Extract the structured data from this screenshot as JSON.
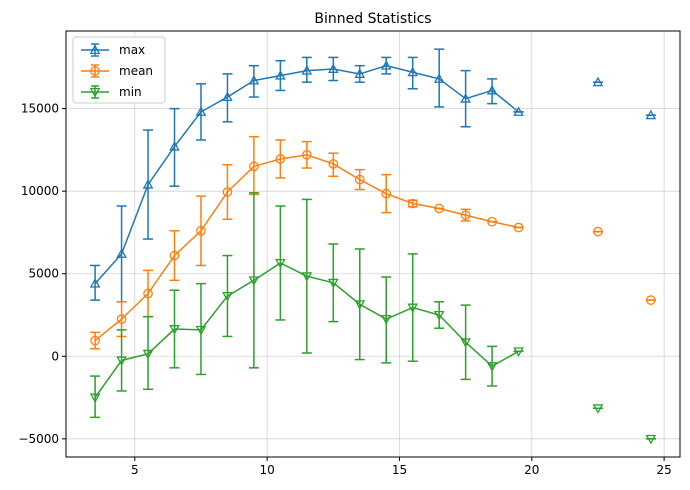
{
  "chart_data": {
    "type": "line",
    "title": "Binned Statistics",
    "xlabel": "",
    "ylabel": "",
    "xlim": [
      2.4,
      25.6
    ],
    "ylim": [
      -6100,
      19700
    ],
    "xticks": [
      5,
      10,
      15,
      20,
      25
    ],
    "yticks": [
      -5000,
      0,
      5000,
      10000,
      15000
    ],
    "xtick_labels": [
      "5",
      "10",
      "15",
      "20",
      "25"
    ],
    "ytick_labels": [
      "−5000",
      "0",
      "5000",
      "10000",
      "15000"
    ],
    "grid": true,
    "legend_position": "top-left",
    "series": [
      {
        "name": "max",
        "color": "#1f77b4",
        "marker": "triangle-up",
        "x": [
          3.5,
          4.5,
          5.5,
          6.5,
          7.5,
          8.5,
          9.5,
          10.5,
          11.5,
          12.5,
          13.5,
          14.5,
          15.5,
          16.5,
          17.5,
          18.5,
          19.5,
          22.5,
          24.5
        ],
        "y": [
          4400,
          6200,
          10400,
          12700,
          14800,
          15700,
          16700,
          17000,
          17300,
          17400,
          17100,
          17600,
          17200,
          16800,
          15600,
          16100,
          14800,
          16600,
          14600
        ],
        "err_low": [
          3400,
          3300,
          7100,
          10300,
          13100,
          14200,
          15700,
          16100,
          16600,
          16700,
          16600,
          17100,
          16200,
          15100,
          13900,
          15300,
          14800,
          16600,
          14600
        ],
        "err_high": [
          5500,
          9100,
          13700,
          15000,
          16500,
          17100,
          17600,
          17900,
          18100,
          18100,
          17600,
          18100,
          18100,
          18600,
          17300,
          16800,
          14800,
          16600,
          14600
        ],
        "connected_count": 17
      },
      {
        "name": "mean",
        "color": "#ff7f0e",
        "marker": "circle",
        "x": [
          3.5,
          4.5,
          5.5,
          6.5,
          7.5,
          8.5,
          9.5,
          10.5,
          11.5,
          12.5,
          13.5,
          14.5,
          15.5,
          16.5,
          17.5,
          18.5,
          19.5,
          22.5,
          24.5
        ],
        "y": [
          950,
          2250,
          3800,
          6100,
          7600,
          9950,
          11500,
          11950,
          12200,
          11650,
          10700,
          9850,
          9250,
          8950,
          8550,
          8150,
          7800,
          7550,
          3400
        ],
        "err_low": [
          450,
          1200,
          2400,
          4600,
          5500,
          8300,
          9800,
          10800,
          11400,
          10900,
          10100,
          8700,
          9050,
          8950,
          8200,
          8150,
          7800,
          7550,
          3400
        ],
        "err_high": [
          1450,
          3300,
          5200,
          7600,
          9700,
          11600,
          13300,
          13100,
          13000,
          12300,
          11300,
          11000,
          9450,
          8950,
          8900,
          8150,
          7800,
          7550,
          3400
        ],
        "connected_count": 17
      },
      {
        "name": "min",
        "color": "#2ca02c",
        "marker": "triangle-down",
        "x": [
          3.5,
          4.5,
          5.5,
          6.5,
          7.5,
          8.5,
          9.5,
          10.5,
          11.5,
          12.5,
          13.5,
          14.5,
          15.5,
          16.5,
          17.5,
          18.5,
          19.5,
          22.5,
          24.5
        ],
        "y": [
          -2500,
          -250,
          150,
          1650,
          1600,
          3650,
          4600,
          5650,
          4850,
          4450,
          3150,
          2250,
          2950,
          2500,
          850,
          -600,
          300,
          -3150,
          -5000
        ],
        "err_low": [
          -3700,
          -2100,
          -2000,
          -700,
          -1100,
          1200,
          -700,
          2200,
          200,
          2100,
          -200,
          -400,
          -300,
          1700,
          -1400,
          -1800,
          300,
          -3150,
          -5000
        ],
        "err_high": [
          -1200,
          1600,
          2400,
          4000,
          4400,
          6100,
          9900,
          9100,
          9500,
          6800,
          6500,
          4800,
          6200,
          3300,
          3100,
          600,
          300,
          -3150,
          -5000
        ],
        "connected_count": 17
      }
    ]
  }
}
